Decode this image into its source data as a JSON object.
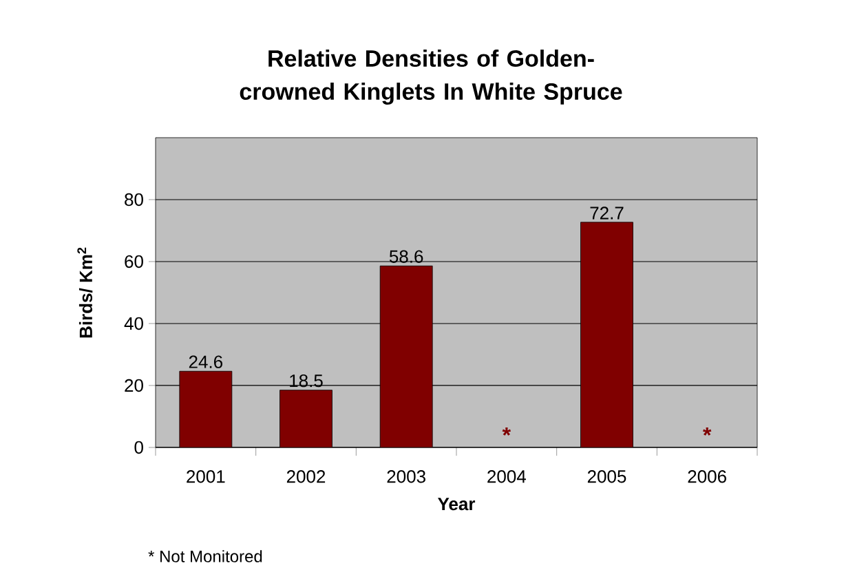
{
  "chart_data": {
    "type": "bar",
    "title": "Relative Densities of Golden-crowned Kinglets In White Spruce",
    "xlabel": "Year",
    "ylabel": "Birds/ Km$^{2}$",
    "categories": [
      "2001",
      "2002",
      "2003",
      "2004",
      "2005",
      "2006"
    ],
    "values": [
      24.6,
      18.5,
      58.6,
      null,
      72.7,
      null
    ],
    "color": "#800000",
    "ylim": [
      0,
      100
    ],
    "yticks": [
      0,
      20,
      40,
      60,
      80
    ],
    "grid": "y",
    "data_labels": true,
    "annotations": [
      "*",
      "*",
      "* Not Monitored"
    ]
  }
}
